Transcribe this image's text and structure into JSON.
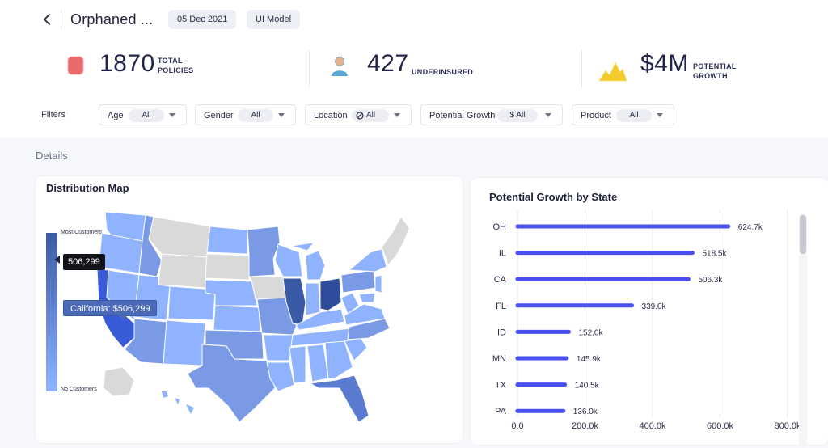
{
  "header": {
    "title": "Orphaned ...",
    "date": "05 Dec 2021",
    "model": "UI Model"
  },
  "kpis": [
    {
      "value": "1870",
      "label_line1": "TOTAL",
      "label_line2": "POLICIES",
      "icon": "policy-card-icon",
      "color": "#e86a6a"
    },
    {
      "value": "427",
      "label_line1": "UNDERINSURED",
      "label_line2": "",
      "icon": "person-icon",
      "color": "#5aa8d8"
    },
    {
      "value": "$4M",
      "label_line1": "POTENTIAL",
      "label_line2": "GROWTH",
      "icon": "growth-peaks-icon",
      "color": "#f2cc2e"
    }
  ],
  "filters": {
    "label": "Filters",
    "items": [
      {
        "label": "Age",
        "value": "All"
      },
      {
        "label": "Gender",
        "value": "All"
      },
      {
        "label": "Location",
        "value": "All",
        "icon": "no-filter-icon"
      },
      {
        "label": "Potential Growth",
        "value": "$ All"
      },
      {
        "label": "Product",
        "value": "All"
      }
    ]
  },
  "details_label": "Details",
  "map": {
    "title": "Distribution Map",
    "legend_top": "Most Customers",
    "legend_bottom": "No Customers",
    "legend_marker_value": "506,299",
    "tooltip": "California: $506,299",
    "colors": {
      "high": "#3b5aa6",
      "low": "#8fb3ff",
      "none": "#d9d9d9",
      "highlight": "#3a5bd9"
    }
  },
  "chart_data": {
    "type": "bar",
    "orientation": "horizontal",
    "title": "Potential Growth by State",
    "categories": [
      "OH",
      "IL",
      "CA",
      "FL",
      "ID",
      "MN",
      "TX",
      "PA"
    ],
    "values": [
      624700,
      518500,
      506300,
      339000,
      152000,
      145900,
      140500,
      136000
    ],
    "value_labels": [
      "624.7k",
      "518.5k",
      "506.3k",
      "339.0k",
      "152.0k",
      "145.9k",
      "140.5k",
      "136.0k"
    ],
    "x_ticks": [
      0,
      200000,
      400000,
      600000,
      800000
    ],
    "x_tick_labels": [
      "0.0",
      "200.0k",
      "400.0k",
      "600.0k",
      "800.0k"
    ],
    "xlim": [
      0,
      800000
    ],
    "grid": true,
    "bar_color": "#4a4ff0"
  }
}
